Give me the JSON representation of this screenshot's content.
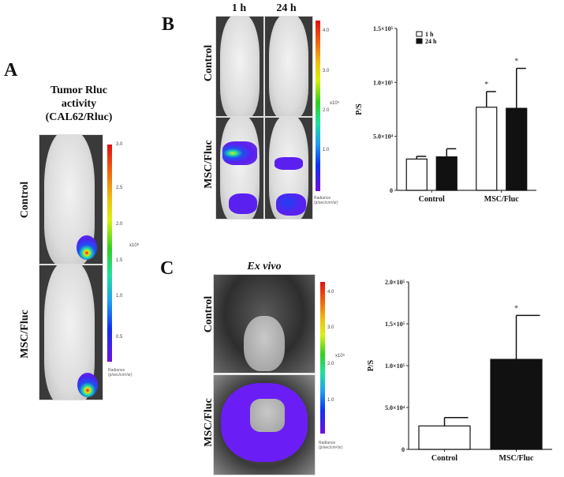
{
  "panels": {
    "A": {
      "letter": "A",
      "title_lines": [
        "Tumor Rluc",
        "activity",
        "(CAL62/Rluc)"
      ],
      "rows": [
        "Control",
        "MSC/Fluc"
      ],
      "colorbar": {
        "ticks": [
          "3.0",
          "2.5",
          "2.0",
          "1.5",
          "1.0",
          "0.5"
        ],
        "exponent": "x10⁸",
        "unit_lines": [
          "Radiance",
          "(p/sec/cm²/sr)"
        ]
      }
    },
    "B": {
      "letter": "B",
      "columns": [
        "1 h",
        "24 h"
      ],
      "rows": [
        "Control",
        "MSC/Fluc"
      ],
      "colorbar": {
        "ticks": [
          "4.0",
          "3.0",
          "2.0",
          "1.0"
        ],
        "exponent": "x10⁵",
        "unit_lines": [
          "Radiance",
          "(p/sec/cm²/sr)"
        ]
      }
    },
    "C": {
      "letter": "C",
      "title": "Ex vivo",
      "rows": [
        "Control",
        "MSC/Fluc"
      ],
      "colorbar": {
        "ticks": [
          "4.0",
          "3.0",
          "2.0",
          "1.0"
        ],
        "exponent": "x10⁵",
        "unit_lines": [
          "Radiance",
          "(p/sec/cm²/sr)"
        ]
      }
    }
  },
  "colors": {
    "bar_white": "#ffffff",
    "bar_black": "#111111",
    "axis": "#333333"
  },
  "chart_data": [
    {
      "type": "bar",
      "panel": "B",
      "title": "",
      "xlabel": "",
      "ylabel": "P/S",
      "categories": [
        "Control",
        "MSC/Fluc"
      ],
      "ylim": [
        0,
        150000
      ],
      "yticks": [
        0,
        50000,
        100000,
        150000
      ],
      "ytick_labels": [
        "0",
        "5.0×10⁴",
        "1.0×10⁵",
        "1.5×10⁵"
      ],
      "legend": {
        "position": "top-left"
      },
      "series": [
        {
          "name": "1 h",
          "color": "#ffffff",
          "values": [
            29000,
            77000
          ],
          "errors": [
            2500,
            14500
          ],
          "significance": [
            "",
            "*"
          ]
        },
        {
          "name": "24 h",
          "color": "#111111",
          "values": [
            31000,
            76000
          ],
          "errors": [
            7500,
            37000
          ],
          "significance": [
            "",
            "*"
          ]
        }
      ]
    },
    {
      "type": "bar",
      "panel": "C",
      "title": "",
      "xlabel": "",
      "ylabel": "P/S",
      "categories": [
        "Control",
        "MSC/Fluc"
      ],
      "ylim": [
        0,
        200000
      ],
      "yticks": [
        0,
        50000,
        100000,
        150000,
        200000
      ],
      "ytick_labels": [
        "0",
        "5.0×10⁴",
        "1.0×10⁵",
        "1.5×10⁵",
        "2.0×10⁵"
      ],
      "series": [
        {
          "name": "value",
          "colors": [
            "#ffffff",
            "#111111"
          ],
          "values": [
            28000,
            107500
          ],
          "errors": [
            10000,
            52500
          ],
          "significance": [
            "",
            "*"
          ]
        }
      ]
    }
  ]
}
